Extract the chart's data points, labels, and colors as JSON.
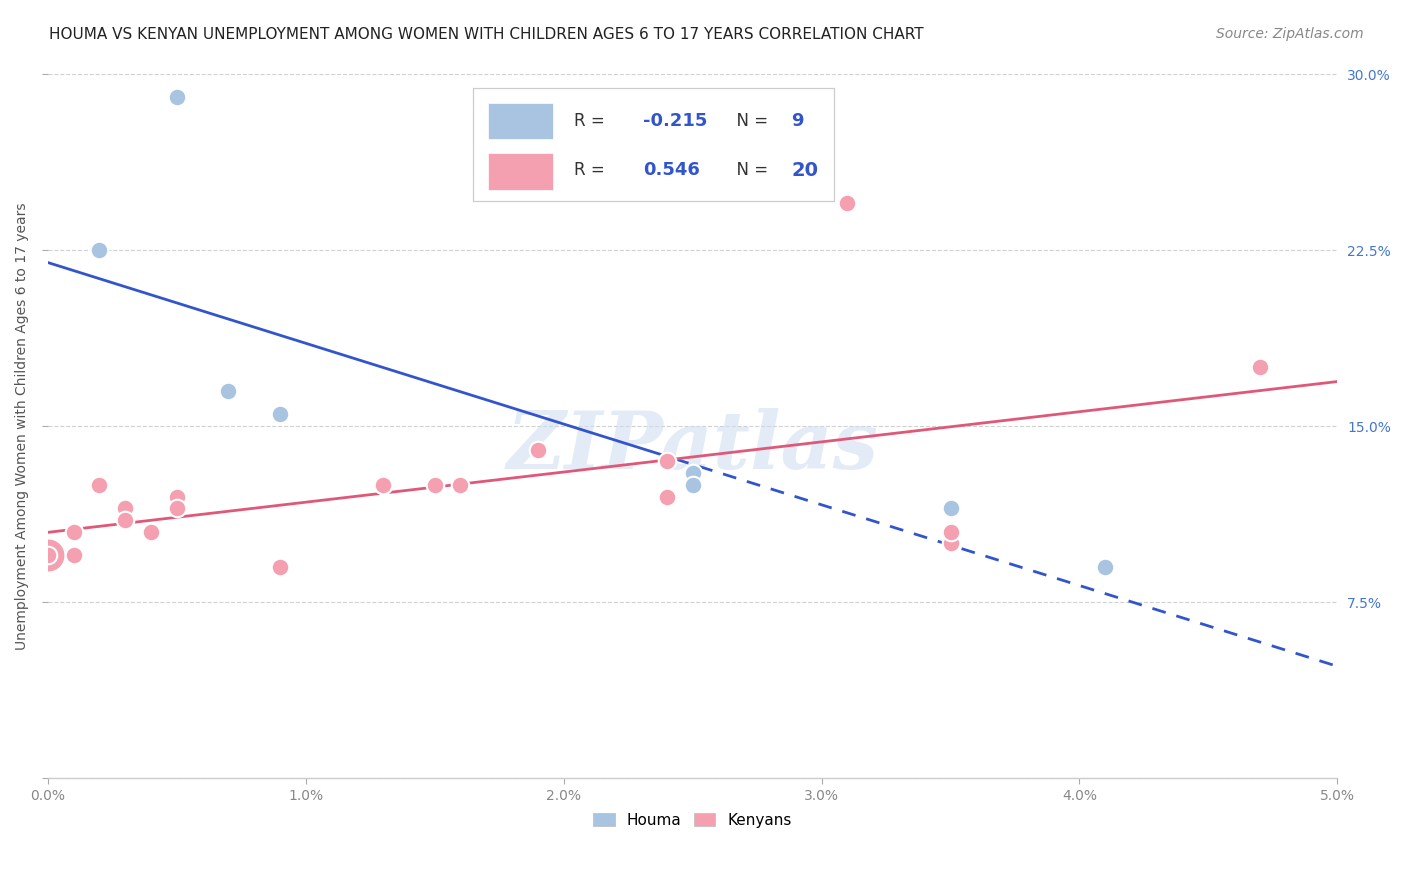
{
  "title": "HOUMA VS KENYAN UNEMPLOYMENT AMONG WOMEN WITH CHILDREN AGES 6 TO 17 YEARS CORRELATION CHART",
  "source": "Source: ZipAtlas.com",
  "ylabel": "Unemployment Among Women with Children Ages 6 to 17 years",
  "xlim": [
    0.0,
    0.05
  ],
  "ylim": [
    0.0,
    0.3
  ],
  "xticks": [
    0.0,
    0.01,
    0.02,
    0.03,
    0.04,
    0.05
  ],
  "yticks": [
    0.0,
    0.075,
    0.15,
    0.225,
    0.3
  ],
  "xtick_labels": [
    "0.0%",
    "1.0%",
    "2.0%",
    "3.0%",
    "4.0%",
    "5.0%"
  ],
  "ytick_labels": [
    "",
    "7.5%",
    "15.0%",
    "22.5%",
    "30.0%"
  ],
  "houma_color": "#a8c4e0",
  "kenyan_color": "#f4a0b0",
  "houma_line_color": "#3355cc",
  "kenyan_line_color": "#e05878",
  "houma_label": "Houma",
  "kenyan_label": "Kenyans",
  "houma_R": "-0.215",
  "houma_N": "9",
  "kenyan_R": "0.546",
  "kenyan_N": "20",
  "houma_points": [
    [
      0.002,
      0.225
    ],
    [
      0.005,
      0.29
    ],
    [
      0.007,
      0.165
    ],
    [
      0.009,
      0.155
    ],
    [
      0.013,
      0.125
    ],
    [
      0.025,
      0.13
    ],
    [
      0.025,
      0.125
    ],
    [
      0.035,
      0.115
    ],
    [
      0.041,
      0.09
    ]
  ],
  "kenyan_points": [
    [
      0.0,
      0.095
    ],
    [
      0.001,
      0.105
    ],
    [
      0.001,
      0.095
    ],
    [
      0.002,
      0.125
    ],
    [
      0.003,
      0.115
    ],
    [
      0.003,
      0.11
    ],
    [
      0.004,
      0.105
    ],
    [
      0.005,
      0.12
    ],
    [
      0.005,
      0.115
    ],
    [
      0.009,
      0.09
    ],
    [
      0.013,
      0.125
    ],
    [
      0.015,
      0.125
    ],
    [
      0.016,
      0.125
    ],
    [
      0.019,
      0.14
    ],
    [
      0.024,
      0.135
    ],
    [
      0.024,
      0.12
    ],
    [
      0.031,
      0.245
    ],
    [
      0.035,
      0.1
    ],
    [
      0.035,
      0.105
    ],
    [
      0.047,
      0.175
    ]
  ],
  "kenyan_large_point": [
    0.0,
    0.095
  ],
  "watermark": "ZIPatlas",
  "background_color": "#ffffff",
  "grid_color": "#cccccc",
  "tick_color_x": "#888888",
  "tick_color_y": "#4477cc",
  "title_fontsize": 11,
  "label_fontsize": 10,
  "tick_fontsize": 10,
  "legend_fontsize": 13,
  "source_fontsize": 10
}
